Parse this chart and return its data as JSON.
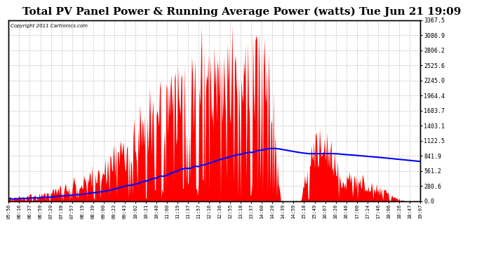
{
  "title": "Total PV Panel Power & Running Average Power (watts) Tue Jun 21 19:09",
  "copyright_text": "Copyright 2011 Cartronics.com",
  "ylabel_right_ticks": [
    0.0,
    280.6,
    561.2,
    841.9,
    1122.5,
    1403.1,
    1683.7,
    1964.4,
    2245.0,
    2525.6,
    2806.2,
    3086.9,
    3367.5
  ],
  "ymax": 3367.5,
  "ymin": 0.0,
  "fill_color": "#FF0000",
  "line_color": "#0000FF",
  "background_color": "#FFFFFF",
  "grid_color": "#BBBBBB",
  "title_fontsize": 11,
  "x_tick_labels": [
    "05:56",
    "06:16",
    "06:37",
    "06:59",
    "07:20",
    "07:38",
    "07:57",
    "08:19",
    "08:39",
    "09:00",
    "09:23",
    "09:43",
    "10:02",
    "10:21",
    "10:40",
    "11:00",
    "11:19",
    "11:37",
    "11:57",
    "12:16",
    "12:36",
    "12:55",
    "13:18",
    "13:37",
    "14:00",
    "14:20",
    "14:39",
    "14:59",
    "15:18",
    "15:49",
    "16:07",
    "16:26",
    "16:46",
    "17:06",
    "17:24",
    "17:46",
    "18:06",
    "18:26",
    "18:47",
    "19:07"
  ],
  "num_points": 500,
  "seed": 42
}
